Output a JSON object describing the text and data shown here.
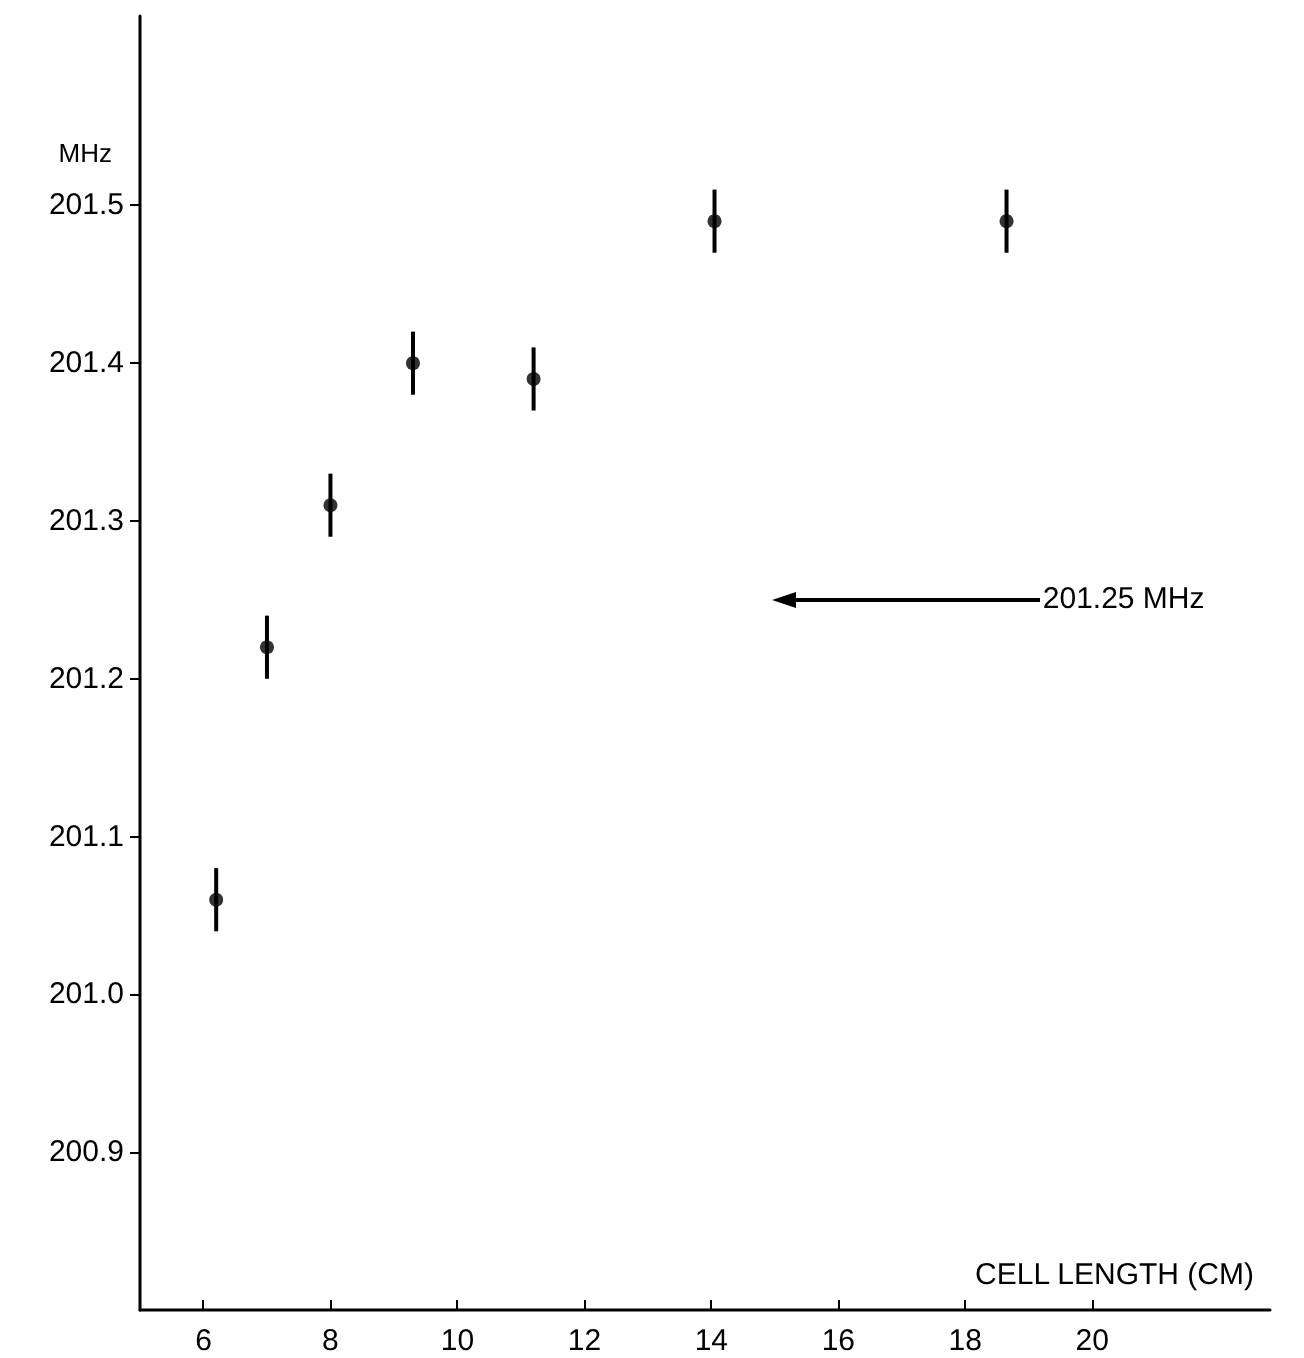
{
  "chart_data": {
    "type": "scatter",
    "xlabel": "CELL LENGTH (CM)",
    "ylabel": "MHz",
    "x": [
      6.2,
      7.0,
      8.0,
      9.3,
      11.2,
      14.05,
      18.65
    ],
    "values": [
      201.06,
      201.22,
      201.31,
      201.4,
      201.39,
      201.49,
      201.49
    ],
    "errors": [
      0.02,
      0.02,
      0.02,
      0.02,
      0.02,
      0.02,
      0.02
    ],
    "color": "#000000",
    "marker": "circle",
    "grid": false,
    "xlim": [
      5,
      22.8
    ],
    "xticks": [
      6,
      8,
      10,
      12,
      14,
      16,
      18,
      20
    ],
    "ylim": [
      200.8,
      201.62
    ],
    "yticks": [
      200.9,
      {
        "value": 201.0,
        "label": "201.0"
      },
      {
        "value": 201.1,
        "label": "201.1"
      },
      {
        "value": 201.2,
        "label": "201.2"
      },
      {
        "value": 201.3,
        "label": "201.3"
      },
      {
        "value": 201.4,
        "label": "201.4"
      },
      {
        "value": 201.5,
        "label": "201.5"
      }
    ],
    "ref_lines": [
      {
        "axis": "y",
        "value": 201.25,
        "label": "201.25 MHz",
        "color": "#000000"
      }
    ]
  }
}
